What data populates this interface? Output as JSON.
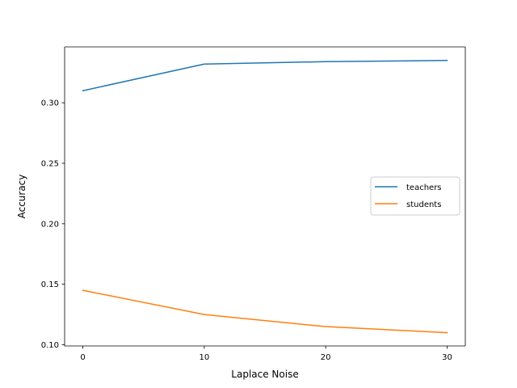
{
  "chart_data": {
    "type": "line",
    "title": "",
    "xlabel": "Laplace Noise",
    "ylabel": "Accuracy",
    "x": [
      0,
      10,
      20,
      30
    ],
    "xlim": [
      -1.5,
      31.5
    ],
    "ylim": [
      0.099,
      0.3462
    ],
    "xticks": [
      0,
      10,
      20,
      30
    ],
    "xtick_labels": [
      "0",
      "10",
      "20",
      "30"
    ],
    "yticks": [
      0.1,
      0.15,
      0.2,
      0.25,
      0.3
    ],
    "ytick_labels": [
      "0.10",
      "0.15",
      "0.20",
      "0.25",
      "0.30"
    ],
    "grid": false,
    "legend_position": "center-right",
    "series": [
      {
        "name": "teachers",
        "color": "#1f77b4",
        "values": [
          0.31,
          0.332,
          0.334,
          0.335
        ]
      },
      {
        "name": "students",
        "color": "#ff7f0e",
        "values": [
          0.145,
          0.125,
          0.115,
          0.11
        ]
      }
    ]
  }
}
